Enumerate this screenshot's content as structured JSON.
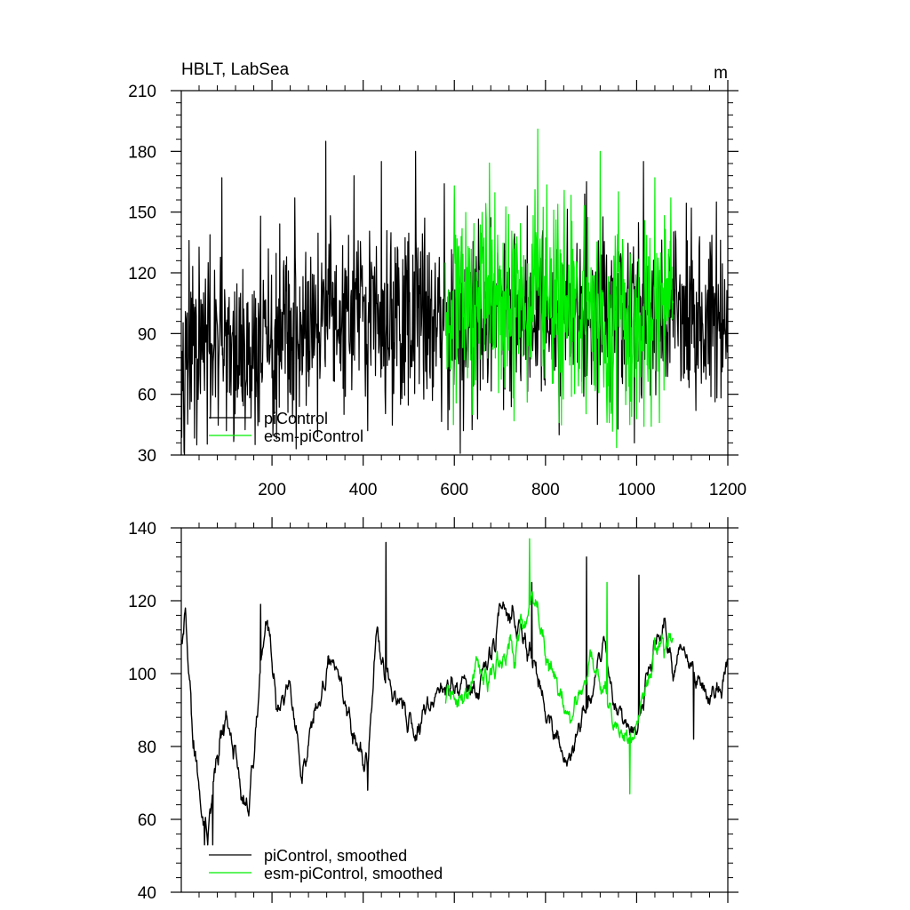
{
  "chart_data": [
    {
      "type": "line",
      "title_left": "HBLT, LabSea",
      "title_right": "m",
      "xlabel": "",
      "ylabel": "",
      "xlim": [
        1,
        1200
      ],
      "ylim": [
        30,
        210
      ],
      "x_ticks": [
        200,
        400,
        600,
        800,
        1000,
        1200
      ],
      "y_ticks": [
        30,
        60,
        90,
        120,
        150,
        180,
        210
      ],
      "grid": false,
      "legend_position": "bottom-left",
      "series": [
        {
          "name": "piControl",
          "color": "#000000",
          "x_range": [
            1,
            1200
          ],
          "mean": 93,
          "spread": 22,
          "trend": [
            [
              1,
              82
            ],
            [
              150,
              80
            ],
            [
              300,
              94
            ],
            [
              450,
              98
            ],
            [
              600,
              98
            ],
            [
              800,
              102
            ],
            [
              1000,
              100
            ],
            [
              1200,
              100
            ]
          ],
          "peaks": [
            [
              18,
              136
            ],
            [
              60,
              125
            ],
            [
              90,
              167
            ],
            [
              175,
              148
            ],
            [
              250,
              157
            ],
            [
              318,
              185
            ],
            [
              380,
              168
            ],
            [
              440,
              175
            ],
            [
              515,
              180
            ],
            [
              578,
              164
            ],
            [
              760,
              153
            ],
            [
              890,
              165
            ],
            [
              1015,
              175
            ],
            [
              1120,
              152
            ],
            [
              1175,
              155
            ]
          ],
          "troughs": [
            [
              35,
              35
            ],
            [
              100,
              42
            ],
            [
              210,
              38
            ],
            [
              300,
              39
            ],
            [
              410,
              42
            ],
            [
              620,
              42
            ],
            [
              830,
              40
            ],
            [
              995,
              36
            ],
            [
              1130,
              52
            ]
          ]
        },
        {
          "name": "esm-piControl",
          "color": "#00ee00",
          "x_range": [
            580,
            1080
          ],
          "mean": 101,
          "spread": 24,
          "trend": [
            [
              580,
              98
            ],
            [
              700,
              104
            ],
            [
              800,
              104
            ],
            [
              900,
              100
            ],
            [
              1000,
              96
            ],
            [
              1080,
              104
            ]
          ],
          "peaks": [
            [
              600,
              163
            ],
            [
              640,
              165
            ],
            [
              783,
              191
            ],
            [
              920,
              180
            ],
            [
              960,
              160
            ],
            [
              1040,
              167
            ],
            [
              1075,
              157
            ]
          ],
          "troughs": [
            [
              598,
              45
            ],
            [
              640,
              50
            ],
            [
              830,
              46
            ],
            [
              940,
              46
            ],
            [
              985,
              45
            ],
            [
              1050,
              46
            ]
          ]
        }
      ]
    },
    {
      "type": "line",
      "xlabel": "",
      "ylabel": "",
      "xlim": [
        1,
        1200
      ],
      "ylim": [
        40,
        140
      ],
      "y_ticks": [
        40,
        60,
        80,
        100,
        120,
        140
      ],
      "grid": false,
      "legend_position": "bottom-left",
      "series": [
        {
          "name": "piControl, smoothed",
          "color": "#000000",
          "x_range": [
            1,
            1200
          ],
          "spread": 7,
          "trend": [
            [
              1,
              105
            ],
            [
              10,
              117
            ],
            [
              25,
              85
            ],
            [
              45,
              62
            ],
            [
              60,
              58
            ],
            [
              85,
              82
            ],
            [
              100,
              88
            ],
            [
              130,
              70
            ],
            [
              150,
              62
            ],
            [
              175,
              100
            ],
            [
              190,
              115
            ],
            [
              210,
              92
            ],
            [
              240,
              95
            ],
            [
              250,
              87
            ],
            [
              265,
              72
            ],
            [
              290,
              88
            ],
            [
              335,
              105
            ],
            [
              360,
              92
            ],
            [
              410,
              72
            ],
            [
              430,
              115
            ],
            [
              445,
              100
            ],
            [
              500,
              88
            ],
            [
              510,
              84
            ],
            [
              560,
              95
            ],
            [
              600,
              97
            ],
            [
              650,
              95
            ],
            [
              690,
              110
            ],
            [
              700,
              120
            ],
            [
              760,
              110
            ],
            [
              800,
              90
            ],
            [
              850,
              75
            ],
            [
              900,
              95
            ],
            [
              930,
              110
            ],
            [
              950,
              90
            ],
            [
              1000,
              82
            ],
            [
              1020,
              100
            ],
            [
              1060,
              113
            ],
            [
              1080,
              100
            ],
            [
              1100,
              108
            ],
            [
              1150,
              95
            ],
            [
              1180,
              95
            ],
            [
              1200,
              105
            ]
          ],
          "peaks": [
            [
              10,
              118
            ],
            [
              175,
              119
            ],
            [
              450,
              136
            ],
            [
              770,
              125
            ],
            [
              890,
              132
            ],
            [
              1005,
              127
            ]
          ],
          "troughs": [
            [
              52,
              53
            ],
            [
              70,
              53
            ],
            [
              410,
              68
            ],
            [
              1125,
              82
            ]
          ]
        },
        {
          "name": "esm-piControl, smoothed",
          "color": "#00ee00",
          "x_range": [
            580,
            1080
          ],
          "spread": 8,
          "trend": [
            [
              580,
              97
            ],
            [
              610,
              92
            ],
            [
              650,
              100
            ],
            [
              700,
              102
            ],
            [
              780,
              120
            ],
            [
              800,
              105
            ],
            [
              830,
              96
            ],
            [
              850,
              88
            ],
            [
              880,
              95
            ],
            [
              900,
              105
            ],
            [
              940,
              92
            ],
            [
              970,
              82
            ],
            [
              1000,
              85
            ],
            [
              1040,
              105
            ],
            [
              1080,
              110
            ]
          ],
          "peaks": [
            [
              765,
              137
            ],
            [
              935,
              125
            ]
          ],
          "troughs": [
            [
              985,
              67
            ]
          ]
        }
      ]
    }
  ]
}
